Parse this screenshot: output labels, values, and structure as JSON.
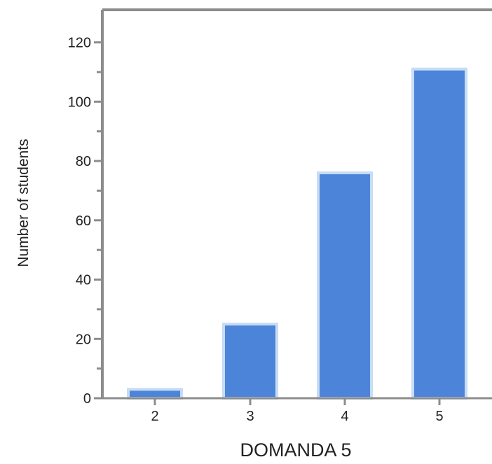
{
  "chart_data": {
    "type": "bar",
    "categories": [
      "2",
      "3",
      "4",
      "5"
    ],
    "values": [
      3,
      25,
      76,
      111
    ],
    "title": "",
    "xlabel": "DOMANDA 5",
    "ylabel": "Number of students",
    "ylim": [
      0,
      130
    ],
    "yticks": [
      0,
      20,
      40,
      60,
      80,
      100,
      120
    ],
    "yminor_ticks": [
      10,
      30,
      50,
      70,
      90,
      110
    ],
    "grid": false,
    "legend": "none",
    "bar_color": "#4c84d9",
    "bar_edge_color": "#c7dcf5",
    "axis_color": "#8c8c8c"
  }
}
